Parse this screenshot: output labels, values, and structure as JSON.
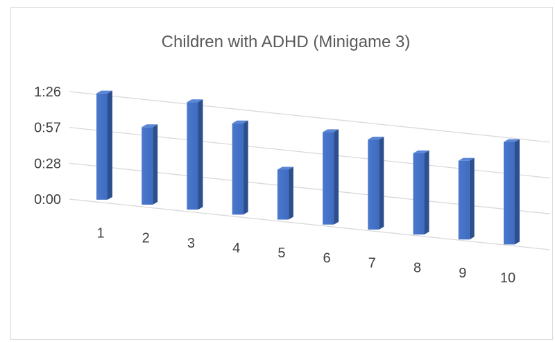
{
  "chart_data": {
    "type": "bar",
    "title": "Children with  ADHD (Minigame 3)",
    "xlabel": "",
    "ylabel": "",
    "categories": [
      "1",
      "2",
      "3",
      "4",
      "5",
      "6",
      "7",
      "8",
      "9",
      "10"
    ],
    "y_ticks": [
      "0:00",
      "0:28",
      "0:57",
      "1:26"
    ],
    "values_seconds": [
      85,
      62,
      86,
      73,
      40,
      74,
      72,
      65,
      63,
      82
    ],
    "ylim_seconds": [
      0,
      86
    ],
    "grid": true,
    "legend": "none",
    "bar_color": "#4472c4"
  }
}
